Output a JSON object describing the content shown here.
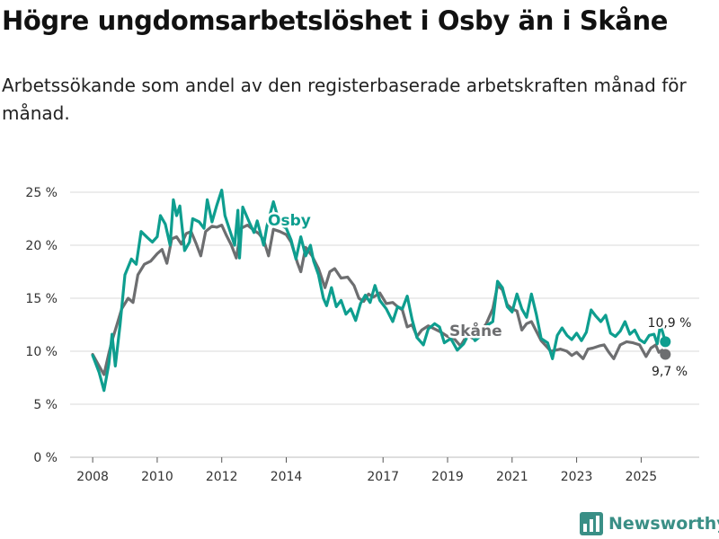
{
  "header": {
    "title": "Högre ungdomsarbetslöshet i Osby än i Skåne",
    "subtitle": "Arbetssökande som andel av den registerbaserade arbetskraften månad för månad."
  },
  "brand": {
    "name": "Newsworthy"
  },
  "colors": {
    "osby": "#0e9e8f",
    "skane": "#6d6e70",
    "grid": "#d9d9d9",
    "axis": "#333333",
    "brand": "#3a8f86"
  },
  "chart_data": {
    "type": "line",
    "title": "Högre ungdomsarbetslöshet i Osby än i Skåne",
    "xlabel": "",
    "ylabel": "",
    "xlim": [
      2007.3,
      2026.8
    ],
    "ylim": [
      0,
      25
    ],
    "grid": true,
    "yticks": [
      0,
      5,
      10,
      15,
      20,
      25
    ],
    "ytick_labels": [
      "0 %",
      "5 %",
      "10 %",
      "15 %",
      "20 %",
      "25 %"
    ],
    "xticks": [
      2008,
      2010,
      2012,
      2014,
      2017,
      2019,
      2021,
      2023,
      2025
    ],
    "xtick_labels": [
      "2008",
      "2010",
      "2012",
      "2014",
      "2017",
      "2019",
      "2021",
      "2023",
      "2025"
    ],
    "series": [
      {
        "name": "Osby",
        "key": "osby",
        "end_label": "10,9 %",
        "points": [
          [
            2008.0,
            9.6
          ],
          [
            2008.2,
            8.0
          ],
          [
            2008.35,
            6.3
          ],
          [
            2008.5,
            8.8
          ],
          [
            2008.6,
            11.6
          ],
          [
            2008.7,
            8.6
          ],
          [
            2008.85,
            12.5
          ],
          [
            2009.0,
            17.2
          ],
          [
            2009.2,
            18.7
          ],
          [
            2009.35,
            18.2
          ],
          [
            2009.5,
            21.3
          ],
          [
            2009.7,
            20.7
          ],
          [
            2009.85,
            20.3
          ],
          [
            2010.0,
            20.8
          ],
          [
            2010.1,
            22.8
          ],
          [
            2010.25,
            22.0
          ],
          [
            2010.4,
            20.0
          ],
          [
            2010.5,
            24.3
          ],
          [
            2010.6,
            22.8
          ],
          [
            2010.7,
            23.7
          ],
          [
            2010.85,
            19.5
          ],
          [
            2011.0,
            20.3
          ],
          [
            2011.1,
            22.5
          ],
          [
            2011.3,
            22.2
          ],
          [
            2011.45,
            21.6
          ],
          [
            2011.55,
            24.3
          ],
          [
            2011.7,
            22.2
          ],
          [
            2011.85,
            23.8
          ],
          [
            2012.0,
            25.2
          ],
          [
            2012.1,
            22.8
          ],
          [
            2012.25,
            21.4
          ],
          [
            2012.4,
            20.0
          ],
          [
            2012.5,
            23.3
          ],
          [
            2012.55,
            18.8
          ],
          [
            2012.65,
            23.6
          ],
          [
            2012.85,
            22.2
          ],
          [
            2013.0,
            21.2
          ],
          [
            2013.1,
            22.3
          ],
          [
            2013.3,
            20.0
          ],
          [
            2013.4,
            21.8
          ],
          [
            2013.6,
            24.1
          ],
          [
            2013.8,
            22.0
          ],
          [
            2014.0,
            21.6
          ],
          [
            2014.15,
            20.5
          ],
          [
            2014.3,
            18.7
          ],
          [
            2014.45,
            20.8
          ],
          [
            2014.6,
            19.0
          ],
          [
            2014.75,
            20.0
          ],
          [
            2014.85,
            18.5
          ],
          [
            2015.0,
            17.2
          ],
          [
            2015.15,
            15.0
          ],
          [
            2015.25,
            14.3
          ],
          [
            2015.4,
            16.0
          ],
          [
            2015.55,
            14.2
          ],
          [
            2015.7,
            14.8
          ],
          [
            2015.85,
            13.5
          ],
          [
            2016.0,
            14.0
          ],
          [
            2016.15,
            12.9
          ],
          [
            2016.3,
            14.5
          ],
          [
            2016.45,
            15.3
          ],
          [
            2016.6,
            14.6
          ],
          [
            2016.75,
            16.2
          ],
          [
            2016.9,
            14.8
          ],
          [
            2017.1,
            14.0
          ],
          [
            2017.3,
            12.8
          ],
          [
            2017.45,
            14.2
          ],
          [
            2017.6,
            14.0
          ],
          [
            2017.75,
            15.2
          ],
          [
            2017.9,
            13.0
          ],
          [
            2018.05,
            11.3
          ],
          [
            2018.25,
            10.6
          ],
          [
            2018.4,
            12.1
          ],
          [
            2018.6,
            12.6
          ],
          [
            2018.75,
            12.3
          ],
          [
            2018.9,
            10.8
          ],
          [
            2019.1,
            11.2
          ],
          [
            2019.3,
            10.1
          ],
          [
            2019.5,
            10.7
          ],
          [
            2019.7,
            11.9
          ],
          [
            2019.85,
            11.0
          ],
          [
            2020.05,
            11.5
          ],
          [
            2020.25,
            12.5
          ],
          [
            2020.4,
            12.8
          ],
          [
            2020.55,
            16.6
          ],
          [
            2020.7,
            16.0
          ],
          [
            2020.85,
            14.2
          ],
          [
            2021.0,
            13.7
          ],
          [
            2021.15,
            15.4
          ],
          [
            2021.3,
            14.0
          ],
          [
            2021.45,
            13.2
          ],
          [
            2021.6,
            15.4
          ],
          [
            2021.75,
            13.5
          ],
          [
            2021.9,
            11.2
          ],
          [
            2022.1,
            10.8
          ],
          [
            2022.25,
            9.3
          ],
          [
            2022.4,
            11.5
          ],
          [
            2022.55,
            12.2
          ],
          [
            2022.7,
            11.5
          ],
          [
            2022.85,
            11.1
          ],
          [
            2023.0,
            11.7
          ],
          [
            2023.15,
            11.0
          ],
          [
            2023.3,
            11.8
          ],
          [
            2023.45,
            13.9
          ],
          [
            2023.6,
            13.3
          ],
          [
            2023.75,
            12.8
          ],
          [
            2023.9,
            13.4
          ],
          [
            2024.05,
            11.7
          ],
          [
            2024.2,
            11.4
          ],
          [
            2024.35,
            11.9
          ],
          [
            2024.5,
            12.8
          ],
          [
            2024.65,
            11.6
          ],
          [
            2024.8,
            12.0
          ],
          [
            2024.95,
            11.1
          ],
          [
            2025.1,
            10.8
          ],
          [
            2025.25,
            11.5
          ],
          [
            2025.4,
            11.6
          ],
          [
            2025.5,
            10.7
          ],
          [
            2025.6,
            12.5
          ],
          [
            2025.75,
            10.9
          ]
        ]
      },
      {
        "name": "Skåne",
        "key": "skane",
        "end_label": "9,7 %",
        "points": [
          [
            2008.0,
            9.7
          ],
          [
            2008.2,
            8.6
          ],
          [
            2008.35,
            7.8
          ],
          [
            2008.5,
            9.8
          ],
          [
            2008.6,
            11.0
          ],
          [
            2008.75,
            12.5
          ],
          [
            2008.9,
            14.0
          ],
          [
            2009.1,
            15.0
          ],
          [
            2009.25,
            14.6
          ],
          [
            2009.4,
            17.2
          ],
          [
            2009.6,
            18.2
          ],
          [
            2009.8,
            18.5
          ],
          [
            2010.0,
            19.2
          ],
          [
            2010.15,
            19.6
          ],
          [
            2010.3,
            18.3
          ],
          [
            2010.45,
            20.6
          ],
          [
            2010.6,
            20.8
          ],
          [
            2010.75,
            20.1
          ],
          [
            2010.9,
            21.1
          ],
          [
            2011.05,
            21.3
          ],
          [
            2011.2,
            20.2
          ],
          [
            2011.35,
            19.0
          ],
          [
            2011.5,
            21.3
          ],
          [
            2011.7,
            21.8
          ],
          [
            2011.85,
            21.7
          ],
          [
            2012.0,
            21.9
          ],
          [
            2012.15,
            20.9
          ],
          [
            2012.3,
            20.0
          ],
          [
            2012.45,
            18.8
          ],
          [
            2012.6,
            21.6
          ],
          [
            2012.8,
            21.9
          ],
          [
            2013.0,
            21.4
          ],
          [
            2013.15,
            21.1
          ],
          [
            2013.3,
            20.5
          ],
          [
            2013.45,
            19.0
          ],
          [
            2013.6,
            21.5
          ],
          [
            2013.8,
            21.3
          ],
          [
            2014.0,
            21.0
          ],
          [
            2014.15,
            20.3
          ],
          [
            2014.35,
            18.3
          ],
          [
            2014.45,
            17.5
          ],
          [
            2014.6,
            19.8
          ],
          [
            2014.8,
            19.0
          ],
          [
            2015.0,
            17.8
          ],
          [
            2015.2,
            16.0
          ],
          [
            2015.35,
            17.5
          ],
          [
            2015.5,
            17.8
          ],
          [
            2015.7,
            16.9
          ],
          [
            2015.9,
            17.0
          ],
          [
            2016.1,
            16.2
          ],
          [
            2016.25,
            15.0
          ],
          [
            2016.4,
            14.7
          ],
          [
            2016.55,
            15.4
          ],
          [
            2016.7,
            15.1
          ],
          [
            2016.9,
            15.5
          ],
          [
            2017.1,
            14.5
          ],
          [
            2017.3,
            14.6
          ],
          [
            2017.45,
            14.2
          ],
          [
            2017.6,
            13.9
          ],
          [
            2017.75,
            12.3
          ],
          [
            2017.9,
            12.5
          ],
          [
            2018.05,
            11.4
          ],
          [
            2018.2,
            12.0
          ],
          [
            2018.4,
            12.4
          ],
          [
            2018.6,
            12.1
          ],
          [
            2018.8,
            11.8
          ],
          [
            2019.0,
            11.4
          ],
          [
            2019.2,
            11.2
          ],
          [
            2019.4,
            10.5
          ],
          [
            2019.6,
            11.5
          ],
          [
            2019.8,
            11.2
          ],
          [
            2020.0,
            11.7
          ],
          [
            2020.2,
            12.6
          ],
          [
            2020.4,
            14.0
          ],
          [
            2020.55,
            16.2
          ],
          [
            2020.7,
            15.8
          ],
          [
            2020.85,
            14.4
          ],
          [
            2021.0,
            14.0
          ],
          [
            2021.15,
            13.8
          ],
          [
            2021.3,
            12.0
          ],
          [
            2021.45,
            12.6
          ],
          [
            2021.6,
            12.8
          ],
          [
            2021.75,
            11.9
          ],
          [
            2021.9,
            11.0
          ],
          [
            2022.05,
            10.5
          ],
          [
            2022.2,
            10.0
          ],
          [
            2022.35,
            10.1
          ],
          [
            2022.5,
            10.2
          ],
          [
            2022.7,
            10.0
          ],
          [
            2022.85,
            9.6
          ],
          [
            2023.0,
            9.9
          ],
          [
            2023.2,
            9.3
          ],
          [
            2023.35,
            10.2
          ],
          [
            2023.5,
            10.3
          ],
          [
            2023.7,
            10.5
          ],
          [
            2023.85,
            10.6
          ],
          [
            2024.0,
            9.9
          ],
          [
            2024.15,
            9.3
          ],
          [
            2024.35,
            10.6
          ],
          [
            2024.55,
            10.9
          ],
          [
            2024.75,
            10.8
          ],
          [
            2024.95,
            10.6
          ],
          [
            2025.15,
            9.5
          ],
          [
            2025.3,
            10.3
          ],
          [
            2025.45,
            10.6
          ],
          [
            2025.55,
            9.9
          ],
          [
            2025.65,
            10.1
          ],
          [
            2025.75,
            9.7
          ]
        ]
      }
    ]
  }
}
